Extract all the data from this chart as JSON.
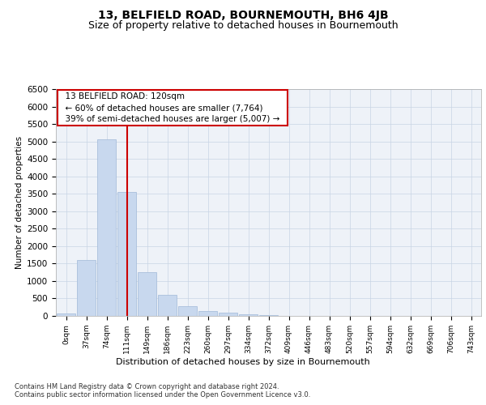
{
  "title": "13, BELFIELD ROAD, BOURNEMOUTH, BH6 4JB",
  "subtitle": "Size of property relative to detached houses in Bournemouth",
  "xlabel": "Distribution of detached houses by size in Bournemouth",
  "ylabel": "Number of detached properties",
  "footnote1": "Contains HM Land Registry data © Crown copyright and database right 2024.",
  "footnote2": "Contains public sector information licensed under the Open Government Licence v3.0.",
  "annotation_title": "13 BELFIELD ROAD: 120sqm",
  "annotation_line1": "← 60% of detached houses are smaller (7,764)",
  "annotation_line2": "39% of semi-detached houses are larger (5,007) →",
  "bar_color": "#c8d8ee",
  "bar_edge_color": "#a0b8d8",
  "vline_color": "#cc0000",
  "vline_position": 3,
  "categories": [
    "0sqm",
    "37sqm",
    "74sqm",
    "111sqm",
    "149sqm",
    "186sqm",
    "223sqm",
    "260sqm",
    "297sqm",
    "334sqm",
    "372sqm",
    "409sqm",
    "446sqm",
    "483sqm",
    "520sqm",
    "557sqm",
    "594sqm",
    "632sqm",
    "669sqm",
    "706sqm",
    "743sqm"
  ],
  "values": [
    70,
    1600,
    5050,
    3560,
    1260,
    600,
    285,
    130,
    90,
    50,
    30,
    10,
    5,
    2,
    1,
    1,
    0,
    0,
    0,
    0,
    0
  ],
  "ylim": [
    0,
    6500
  ],
  "yticks": [
    0,
    500,
    1000,
    1500,
    2000,
    2500,
    3000,
    3500,
    4000,
    4500,
    5000,
    5500,
    6000,
    6500
  ],
  "plot_bg_color": "#eef2f8",
  "title_fontsize": 10,
  "subtitle_fontsize": 9,
  "annotation_box_color": "#ffffff",
  "annotation_box_edge_color": "#cc0000",
  "grid_color": "#c8d4e4"
}
